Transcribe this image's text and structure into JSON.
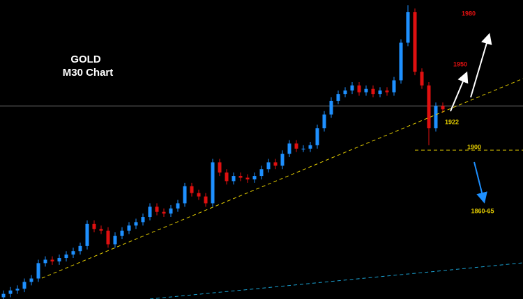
{
  "chart_data": {
    "type": "candlestick",
    "title": "GOLD",
    "subtitle": "M30 Chart",
    "annotations": [
      "1980",
      "1950",
      "1922",
      "1900",
      "1860-65"
    ],
    "ylim": [
      1812,
      1987
    ],
    "reference_line": 1925,
    "up_color": "#1e90ff",
    "down_color": "#e01010",
    "open": [
      1813,
      1815,
      1817,
      1818,
      1822,
      1824,
      1833,
      1835,
      1834,
      1836,
      1838,
      1840,
      1843,
      1856,
      1853,
      1852,
      1844,
      1849,
      1852,
      1855,
      1857,
      1860,
      1866,
      1863,
      1862,
      1865,
      1868,
      1878,
      1874,
      1872,
      1868,
      1892,
      1886,
      1881,
      1884,
      1883,
      1882,
      1884,
      1888,
      1892,
      1890,
      1897,
      1903,
      1900,
      1900,
      1902,
      1912,
      1920,
      1928,
      1932,
      1934,
      1937,
      1933,
      1935,
      1932,
      1934,
      1933,
      1940,
      1962,
      1980,
      1945,
      1937,
      1912,
      1925
    ],
    "high": [
      1817,
      1819,
      1820,
      1824,
      1826,
      1835,
      1837,
      1837,
      1838,
      1840,
      1842,
      1845,
      1858,
      1858,
      1855,
      1854,
      1851,
      1854,
      1857,
      1859,
      1862,
      1868,
      1868,
      1865,
      1867,
      1870,
      1880,
      1880,
      1876,
      1874,
      1894,
      1894,
      1888,
      1886,
      1886,
      1885,
      1886,
      1890,
      1894,
      1894,
      1899,
      1905,
      1905,
      1902,
      1904,
      1914,
      1922,
      1930,
      1934,
      1936,
      1939,
      1939,
      1937,
      1937,
      1936,
      1936,
      1942,
      1964,
      1984,
      1982,
      1947,
      1939,
      1927,
      1927
    ],
    "low": [
      1811,
      1813,
      1815,
      1816,
      1820,
      1822,
      1831,
      1832,
      1832,
      1834,
      1836,
      1838,
      1841,
      1851,
      1850,
      1842,
      1842,
      1847,
      1850,
      1853,
      1855,
      1858,
      1861,
      1860,
      1860,
      1863,
      1866,
      1872,
      1870,
      1866,
      1866,
      1884,
      1879,
      1879,
      1881,
      1880,
      1880,
      1882,
      1886,
      1888,
      1888,
      1895,
      1898,
      1898,
      1898,
      1900,
      1910,
      1918,
      1926,
      1930,
      1932,
      1931,
      1931,
      1930,
      1930,
      1931,
      1931,
      1938,
      1960,
      1943,
      1935,
      1902,
      1910,
      1921
    ],
    "close": [
      1815,
      1817,
      1818,
      1822,
      1824,
      1833,
      1835,
      1834,
      1836,
      1838,
      1840,
      1843,
      1856,
      1853,
      1852,
      1844,
      1849,
      1852,
      1855,
      1857,
      1860,
      1866,
      1863,
      1862,
      1865,
      1868,
      1878,
      1874,
      1872,
      1868,
      1892,
      1886,
      1881,
      1884,
      1883,
      1882,
      1884,
      1888,
      1892,
      1890,
      1897,
      1903,
      1900,
      1900,
      1902,
      1912,
      1920,
      1928,
      1932,
      1934,
      1937,
      1933,
      1935,
      1932,
      1934,
      1933,
      1940,
      1962,
      1980,
      1945,
      1937,
      1912,
      1925,
      1923
    ]
  }
}
